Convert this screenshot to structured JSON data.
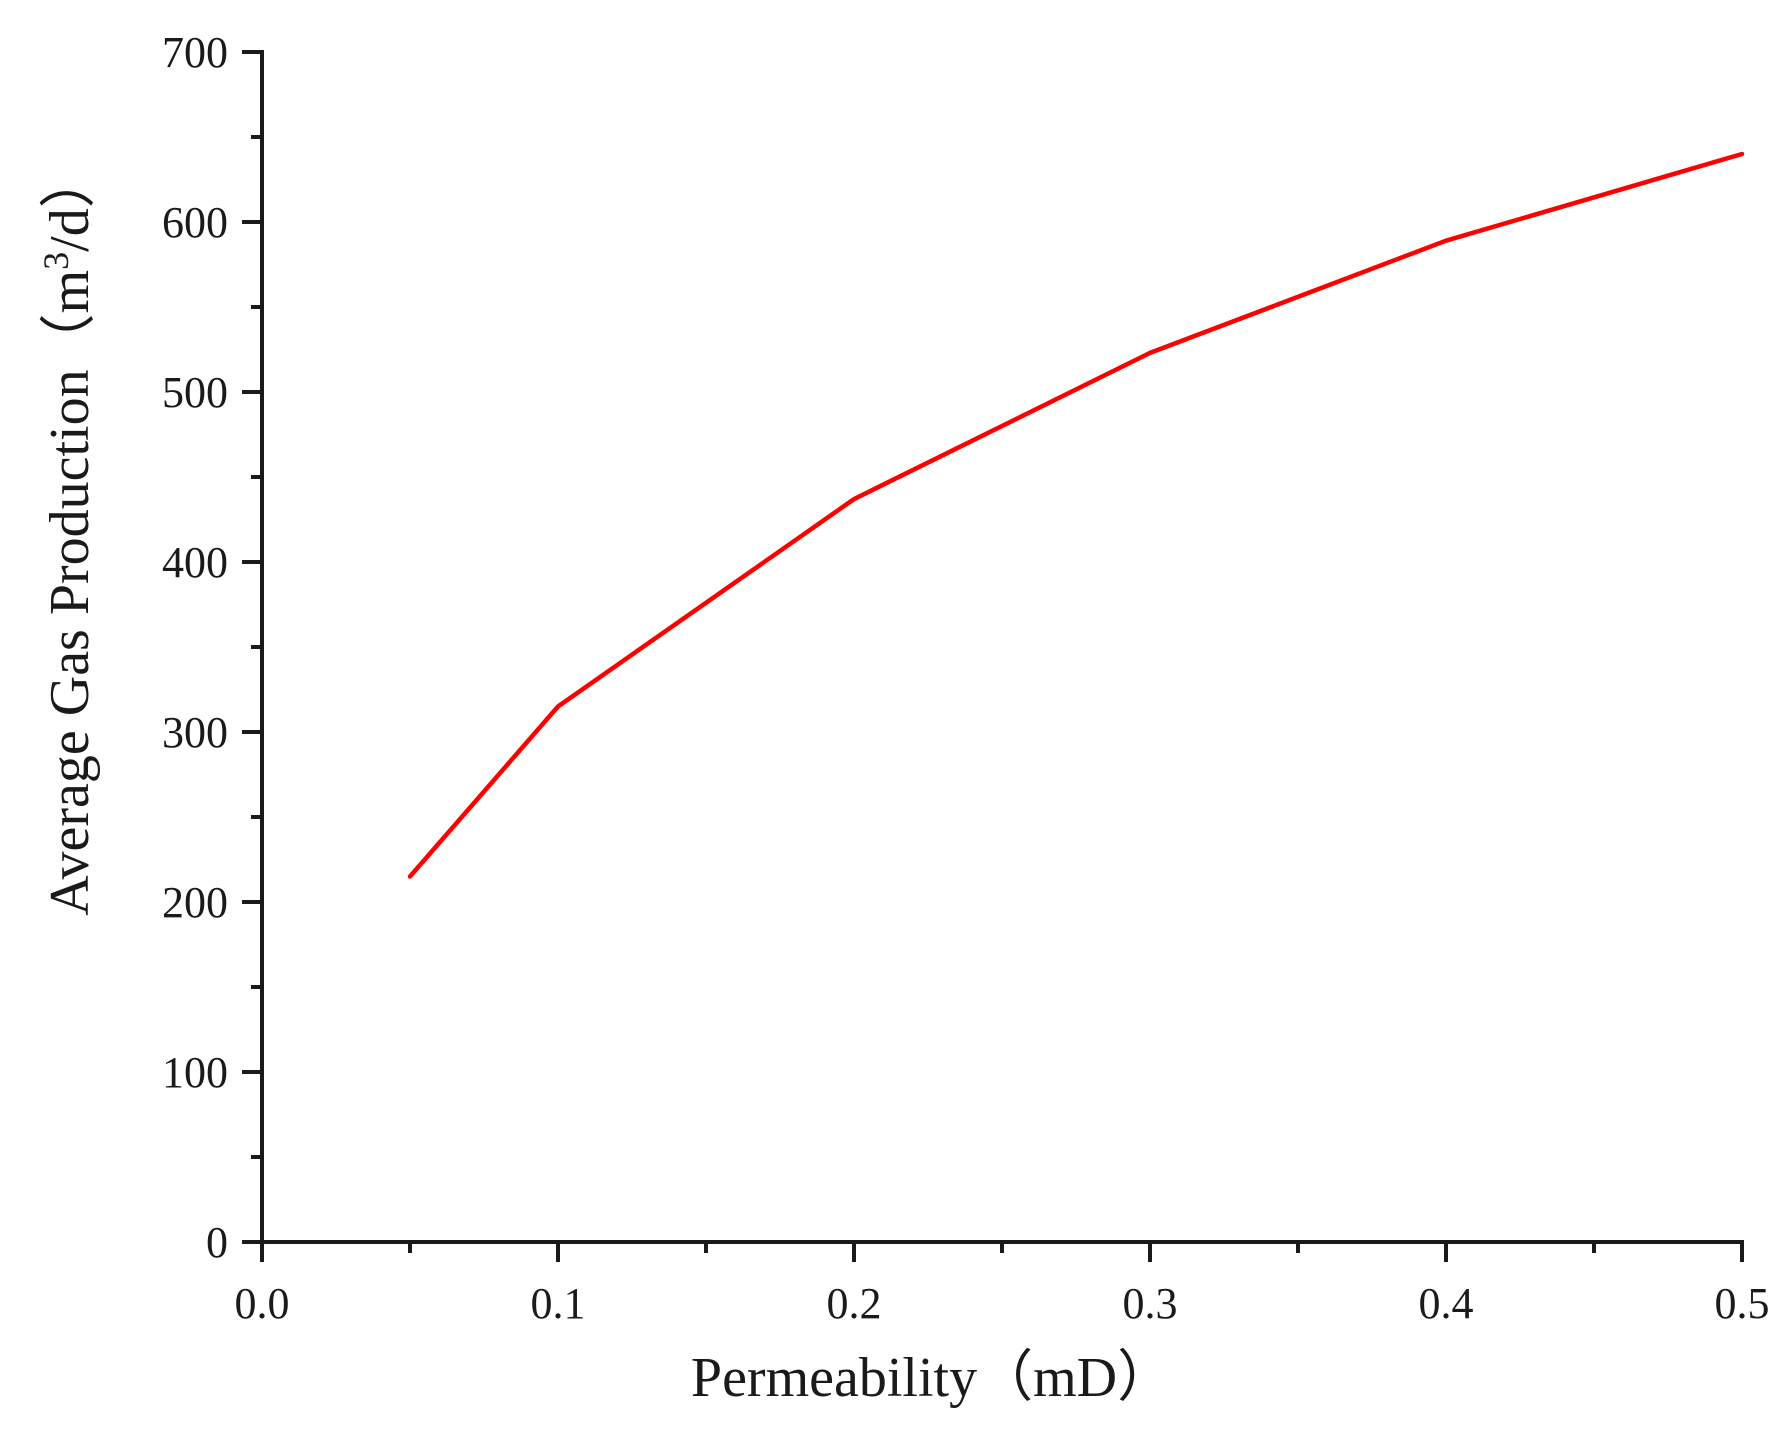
{
  "chart_data": {
    "type": "line",
    "title": "",
    "xlabel": "Permeability（mD）",
    "ylabel": {
      "prefix": "Average Gas Production（m",
      "superscript": "3",
      "suffix": "/d）"
    },
    "xlim": [
      0.0,
      0.5
    ],
    "ylim": [
      0,
      700
    ],
    "x_ticks": [
      0.0,
      0.1,
      0.2,
      0.3,
      0.4,
      0.5
    ],
    "x_tick_labels": [
      "0.0",
      "0.1",
      "0.2",
      "0.3",
      "0.4",
      "0.5"
    ],
    "x_minor_ticks": [
      0.05,
      0.15,
      0.25,
      0.35,
      0.45
    ],
    "y_ticks": [
      0,
      100,
      200,
      300,
      400,
      500,
      600,
      700
    ],
    "y_tick_labels": [
      "0",
      "100",
      "200",
      "300",
      "400",
      "500",
      "600",
      "700"
    ],
    "y_minor_ticks": [
      50,
      150,
      250,
      350,
      450,
      550,
      650
    ],
    "grid": false,
    "legend": "none",
    "series": [
      {
        "color": "#ff0000",
        "x": [
          0.05,
          0.1,
          0.2,
          0.3,
          0.4,
          0.5
        ],
        "y": [
          215,
          315,
          437,
          523,
          589,
          640
        ]
      }
    ]
  }
}
